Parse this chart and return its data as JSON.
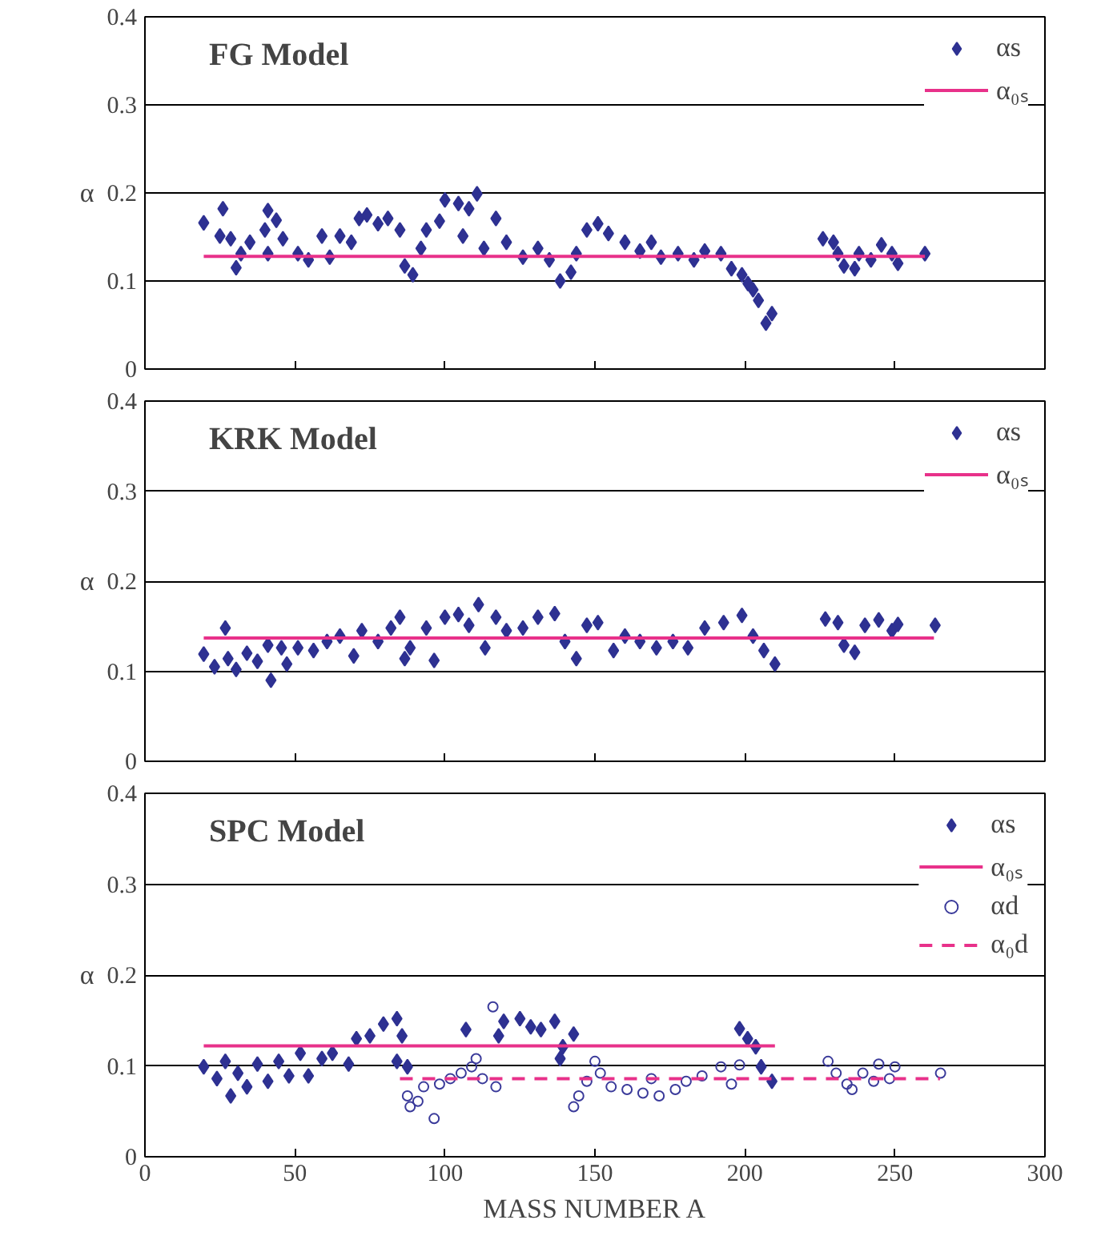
{
  "chart_data": [
    {
      "type": "scatter",
      "title": "FG Model",
      "ylabel": "α",
      "xlim": [
        0,
        300
      ],
      "xticks": [
        0,
        50,
        100,
        150,
        200,
        250,
        300
      ],
      "ylim": [
        0,
        0.4
      ],
      "yticks": [
        0,
        0.1,
        0.2,
        0.3,
        0.4
      ],
      "grid": "y",
      "legend": "top right",
      "tick_labels": "y",
      "series": [
        {
          "name": "αs",
          "marker": "diamond",
          "color": "#2e3192",
          "x": [
            19.6,
            26,
            25,
            28.6,
            30.4,
            32,
            35,
            41,
            43.8,
            40,
            41,
            46,
            51,
            54.5,
            59,
            61.6,
            65,
            68.8,
            71.4,
            74,
            77.7,
            81,
            85,
            86.6,
            89.3,
            92,
            93.8,
            98.2,
            100,
            104.5,
            108,
            110.7,
            106,
            113,
            117,
            120.5,
            126,
            131,
            134.8,
            138.4,
            142,
            143.8,
            147.3,
            151,
            154.5,
            160,
            165,
            168.8,
            172,
            177.7,
            183,
            186.6,
            192,
            195.5,
            199,
            201,
            202.7,
            204.5,
            209,
            207,
            226,
            229.5,
            231,
            233,
            236.6,
            238,
            242,
            245.5,
            249,
            251,
            260
          ],
          "values": [
            0.166,
            0.182,
            0.151,
            0.148,
            0.115,
            0.131,
            0.144,
            0.18,
            0.169,
            0.158,
            0.131,
            0.148,
            0.131,
            0.124,
            0.151,
            0.127,
            0.151,
            0.144,
            0.171,
            0.175,
            0.165,
            0.171,
            0.158,
            0.117,
            0.107,
            0.137,
            0.158,
            0.168,
            0.192,
            0.188,
            0.182,
            0.199,
            0.151,
            0.137,
            0.171,
            0.144,
            0.127,
            0.137,
            0.124,
            0.1,
            0.11,
            0.131,
            0.158,
            0.165,
            0.154,
            0.144,
            0.134,
            0.144,
            0.127,
            0.131,
            0.124,
            0.134,
            0.131,
            0.114,
            0.107,
            0.097,
            0.09,
            0.078,
            0.063,
            0.052,
            0.148,
            0.144,
            0.131,
            0.117,
            0.114,
            0.131,
            0.124,
            0.141,
            0.131,
            0.12,
            0.131
          ]
        },
        {
          "name": "α₀ₛ",
          "type": "line",
          "line_style": "solid",
          "color": "#e8318a",
          "x": [
            19.6,
            260
          ],
          "values": [
            0.128,
            0.128
          ]
        }
      ]
    },
    {
      "type": "scatter",
      "title": "KRK Model",
      "ylabel": "α",
      "xlim": [
        0,
        300
      ],
      "xticks": [
        0,
        50,
        100,
        150,
        200,
        250,
        300
      ],
      "ylim": [
        0,
        0.4
      ],
      "yticks": [
        0,
        0.1,
        0.2,
        0.3,
        0.4
      ],
      "grid": "y",
      "legend": "top right",
      "tick_labels": "y",
      "series": [
        {
          "name": "αs",
          "marker": "diamond",
          "color": "#2e3192",
          "x": [
            19.6,
            26.8,
            23.2,
            27.7,
            30.4,
            34,
            37.5,
            42,
            41,
            45.5,
            47.3,
            51,
            56.2,
            60.7,
            65,
            69.6,
            72.3,
            77.7,
            82,
            85,
            86.6,
            88.4,
            93.8,
            96.4,
            100,
            104.5,
            108,
            111.2,
            113.4,
            117,
            120.5,
            126,
            131,
            136.6,
            140,
            143.8,
            147.3,
            151,
            156.2,
            160,
            165,
            170.5,
            176,
            181,
            186.6,
            192.9,
            199,
            202.7,
            206.3,
            210,
            226.8,
            231,
            233,
            236.6,
            240,
            244.6,
            249,
            251,
            263.4
          ],
          "values": [
            0.119,
            0.148,
            0.105,
            0.114,
            0.102,
            0.12,
            0.111,
            0.09,
            0.129,
            0.126,
            0.108,
            0.126,
            0.123,
            0.133,
            0.139,
            0.117,
            0.145,
            0.133,
            0.148,
            0.16,
            0.114,
            0.126,
            0.148,
            0.112,
            0.16,
            0.163,
            0.151,
            0.174,
            0.126,
            0.16,
            0.145,
            0.148,
            0.16,
            0.164,
            0.133,
            0.114,
            0.151,
            0.154,
            0.123,
            0.139,
            0.133,
            0.126,
            0.133,
            0.126,
            0.148,
            0.154,
            0.162,
            0.139,
            0.123,
            0.108,
            0.158,
            0.154,
            0.129,
            0.121,
            0.151,
            0.157,
            0.145,
            0.152,
            0.151
          ]
        },
        {
          "name": "α₀ₛ",
          "type": "line",
          "line_style": "solid",
          "color": "#e8318a",
          "x": [
            19.6,
            263
          ],
          "values": [
            0.137,
            0.137
          ]
        }
      ]
    },
    {
      "type": "scatter",
      "title": "SPC Model",
      "ylabel": "α",
      "xlabel": "MASS NUMBER A",
      "xlim": [
        0,
        300
      ],
      "xticks": [
        0,
        50,
        100,
        150,
        200,
        250,
        300
      ],
      "ylim": [
        0,
        0.4
      ],
      "yticks": [
        0,
        0.1,
        0.2,
        0.3,
        0.4
      ],
      "grid": "y",
      "legend": "top right",
      "series": [
        {
          "name": "αs",
          "marker": "diamond",
          "color": "#2e3192",
          "x": [
            19.6,
            24,
            26.8,
            28.6,
            31,
            34,
            37.5,
            41,
            44.6,
            48,
            51.8,
            54.5,
            59,
            62.5,
            67.9,
            70.5,
            75,
            79.5,
            84,
            85.7,
            84,
            87.5,
            107,
            117.9,
            119.6,
            125,
            128.6,
            132,
            136.6,
            139.3,
            138.4,
            142.9,
            198.2,
            200.9,
            203.6,
            205.4,
            209
          ],
          "values": [
            0.099,
            0.086,
            0.105,
            0.067,
            0.092,
            0.077,
            0.102,
            0.083,
            0.105,
            0.089,
            0.114,
            0.089,
            0.108,
            0.114,
            0.102,
            0.13,
            0.133,
            0.146,
            0.152,
            0.133,
            0.105,
            0.099,
            0.14,
            0.133,
            0.149,
            0.152,
            0.143,
            0.14,
            0.149,
            0.121,
            0.108,
            0.135,
            0.141,
            0.13,
            0.121,
            0.099,
            0.083
          ]
        },
        {
          "name": "α₀ₛ",
          "type": "line",
          "line_style": "solid",
          "color": "#e8318a",
          "x": [
            19.6,
            210
          ],
          "values": [
            0.122,
            0.122
          ]
        },
        {
          "name": "αd",
          "marker": "circle",
          "color": "#3a3a9a",
          "x": [
            87.5,
            88.4,
            91,
            92.9,
            96.4,
            98.2,
            101.8,
            105.4,
            108.9,
            110.4,
            112.5,
            116,
            117,
            142.9,
            144.6,
            147.3,
            150,
            151.8,
            155.4,
            160.7,
            166,
            168.8,
            171.4,
            176.8,
            180.4,
            185.7,
            192,
            195.5,
            198.2,
            227.7,
            230.4,
            234,
            235.7,
            239.3,
            242.9,
            244.6,
            248.2,
            250,
            265.2
          ],
          "values": [
            0.067,
            0.055,
            0.061,
            0.077,
            0.042,
            0.08,
            0.086,
            0.092,
            0.099,
            0.108,
            0.086,
            0.165,
            0.077,
            0.055,
            0.067,
            0.083,
            0.105,
            0.092,
            0.077,
            0.074,
            0.07,
            0.086,
            0.067,
            0.074,
            0.083,
            0.089,
            0.099,
            0.08,
            0.101,
            0.105,
            0.092,
            0.08,
            0.074,
            0.092,
            0.083,
            0.102,
            0.086,
            0.099,
            0.092
          ]
        },
        {
          "name": "α₀d",
          "type": "line",
          "line_style": "dashed",
          "color": "#e8318a",
          "x": [
            85,
            265
          ],
          "values": [
            0.086,
            0.086
          ]
        }
      ]
    }
  ]
}
